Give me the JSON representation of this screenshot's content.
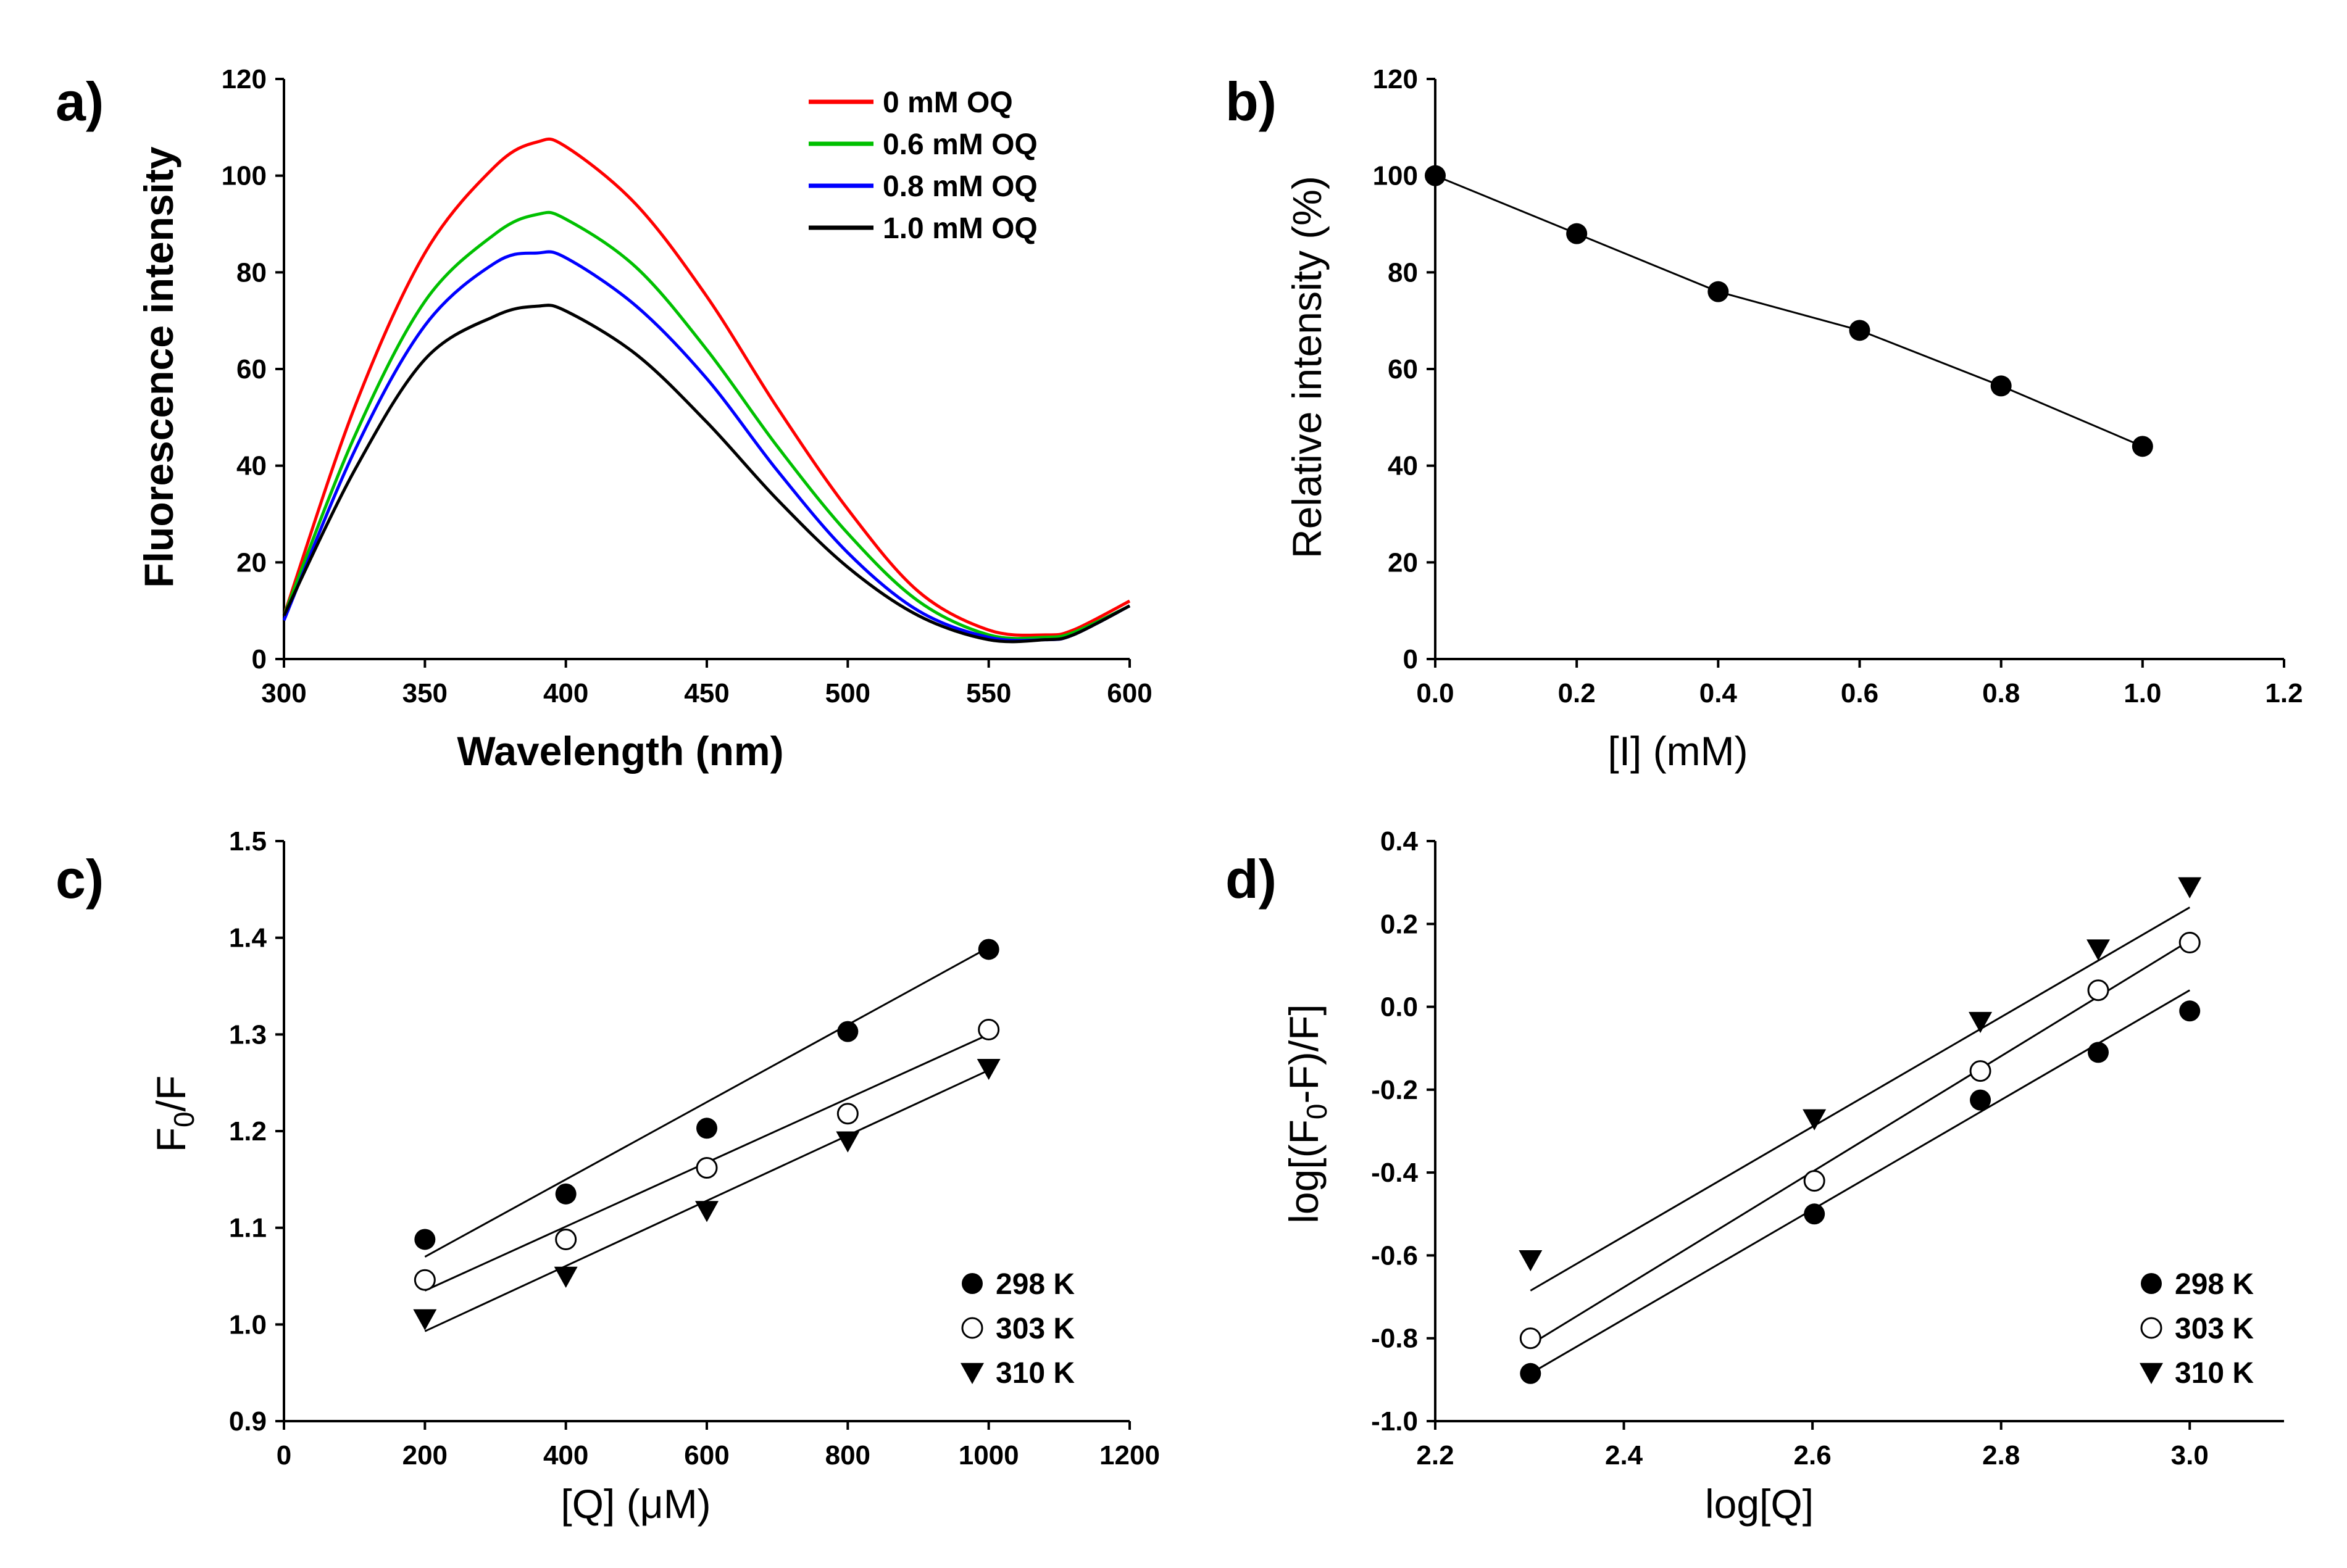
{
  "chart_data": [
    {
      "panel": "a)",
      "type": "line",
      "xlabel": "Wavelength (nm)",
      "ylabel": "Fluorescence intensity",
      "xlim": [
        300,
        600
      ],
      "ylim": [
        0,
        120
      ],
      "xticks": [
        "300",
        "350",
        "400",
        "450",
        "500",
        "550",
        "600"
      ],
      "yticks": [
        "0",
        "20",
        "40",
        "60",
        "80",
        "100",
        "120"
      ],
      "x": [
        300,
        325,
        350,
        375,
        390,
        400,
        425,
        450,
        475,
        500,
        525,
        550,
        570,
        580,
        600
      ],
      "series": [
        {
          "name": "0 mM OQ",
          "color": "#ff0000",
          "values": [
            9,
            52,
            84,
            102,
            107,
            106,
            94,
            75,
            52,
            31,
            14,
            6,
            5,
            6,
            12
          ]
        },
        {
          "name": "0.6 mM OQ",
          "color": "#00c000",
          "values": [
            9,
            46,
            74,
            88,
            92,
            91,
            81,
            64,
            44,
            26,
            12,
            5,
            4.5,
            5.5,
            11
          ]
        },
        {
          "name": "0.8 mM OQ",
          "color": "#0000ff",
          "values": [
            8,
            43,
            69,
            82,
            84,
            83,
            73,
            58,
            39,
            22,
            10,
            4.5,
            4,
            5,
            11
          ]
        },
        {
          "name": "1.0 mM OQ",
          "color": "#000000",
          "values": [
            9,
            39,
            62,
            71,
            73,
            72,
            63,
            49,
            33,
            19,
            9,
            4,
            4,
            5,
            11
          ]
        }
      ],
      "legend_position": "top-right"
    },
    {
      "panel": "b)",
      "type": "line",
      "xlabel": "[I] (mM)",
      "ylabel": "Relative intensity (%)",
      "xlim": [
        0,
        1.2
      ],
      "ylim": [
        0,
        120
      ],
      "xticks": [
        "0.0",
        "0.2",
        "0.4",
        "0.6",
        "0.8",
        "1.0",
        "1.2"
      ],
      "yticks": [
        "0",
        "20",
        "40",
        "60",
        "80",
        "100",
        "120"
      ],
      "x": [
        0.0,
        0.2,
        0.4,
        0.6,
        0.8,
        1.0
      ],
      "series": [
        {
          "name": "Relative intensity",
          "values": [
            100,
            88,
            76,
            68,
            56.5,
            44
          ]
        }
      ]
    },
    {
      "panel": "c)",
      "type": "scatter",
      "xlabel": "[Q] (μM)",
      "ylabel_main": "F",
      "ylabel_sub": "0",
      "ylabel_tail": "/F",
      "xlim": [
        0,
        1200
      ],
      "ylim": [
        0.9,
        1.5
      ],
      "xticks": [
        "0",
        "200",
        "400",
        "600",
        "800",
        "1000",
        "1200"
      ],
      "yticks": [
        "0.9",
        "1.0",
        "1.1",
        "1.2",
        "1.3",
        "1.4",
        "1.5"
      ],
      "x": [
        200,
        400,
        600,
        800,
        1000
      ],
      "series": [
        {
          "name": "298 K",
          "marker": "filled-circle",
          "values": [
            1.088,
            1.135,
            1.203,
            1.303,
            1.388
          ],
          "fit": [
            1.07,
            1.39
          ]
        },
        {
          "name": "303 K",
          "marker": "open-circle",
          "values": [
            1.046,
            1.088,
            1.162,
            1.218,
            1.305
          ],
          "fit": [
            1.035,
            1.3
          ]
        },
        {
          "name": "310 K",
          "marker": "filled-triangle-down",
          "values": [
            1.006,
            1.05,
            1.118,
            1.19,
            1.265
          ],
          "fit": [
            0.993,
            1.263
          ]
        }
      ],
      "legend_position": "bottom-right"
    },
    {
      "panel": "d)",
      "type": "scatter",
      "xlabel": "log[Q]",
      "ylabel_pre": "log[(F",
      "ylabel_sub": "0",
      "ylabel_tail": "-F)/F]",
      "xlim": [
        2.2,
        3.1
      ],
      "ylim": [
        -1.0,
        0.4
      ],
      "xticks": [
        "2.2",
        "2.4",
        "2.6",
        "2.8",
        "3.0"
      ],
      "yticks": [
        "-1.0",
        "-0.8",
        "-0.6",
        "-0.4",
        "-0.2",
        "0.0",
        "0.2",
        "0.4"
      ],
      "x": [
        2.301,
        2.602,
        2.778,
        2.903,
        3.0
      ],
      "series": [
        {
          "name": "298 K",
          "marker": "filled-circle",
          "values": [
            -0.885,
            -0.5,
            -0.225,
            -0.11,
            -0.01
          ],
          "fit": [
            -0.885,
            0.04
          ]
        },
        {
          "name": "303 K",
          "marker": "open-circle",
          "values": [
            -0.8,
            -0.42,
            -0.155,
            0.04,
            0.155
          ],
          "fit": [
            -0.815,
            0.16
          ]
        },
        {
          "name": "310 K",
          "marker": "filled-triangle-down",
          "values": [
            -0.61,
            -0.27,
            -0.035,
            0.14,
            0.29
          ],
          "fit": [
            -0.685,
            0.24
          ]
        }
      ],
      "legend_position": "bottom-right"
    }
  ]
}
